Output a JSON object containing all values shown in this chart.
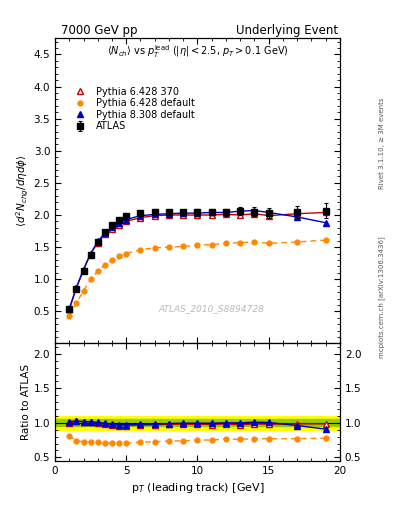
{
  "title_left": "7000 GeV pp",
  "title_right": "Underlying Event",
  "watermark": "ATLAS_2010_S8894728",
  "ylabel_main": "$\\langle d^2 N_{chg}/d\\eta d\\phi\\rangle$",
  "ylabel_ratio": "Ratio to ATLAS",
  "xlabel": "p$_T$ (leading track) [GeV]",
  "ylim_main": [
    0.0,
    4.75
  ],
  "ylim_ratio": [
    0.45,
    2.15
  ],
  "yticks_main": [
    0.5,
    1.0,
    1.5,
    2.0,
    2.5,
    3.0,
    3.5,
    4.0,
    4.5
  ],
  "yticks_ratio": [
    0.5,
    1.0,
    1.5,
    2.0
  ],
  "xticks": [
    0,
    5,
    10,
    15,
    20
  ],
  "atlas_x": [
    1.0,
    1.5,
    2.0,
    2.5,
    3.0,
    3.5,
    4.0,
    4.5,
    5.0,
    6.0,
    7.0,
    8.0,
    9.0,
    10.0,
    11.0,
    12.0,
    13.0,
    14.0,
    15.0,
    17.0,
    19.0
  ],
  "atlas_y": [
    0.53,
    0.85,
    1.13,
    1.38,
    1.58,
    1.73,
    1.85,
    1.93,
    1.98,
    2.03,
    2.05,
    2.04,
    2.04,
    2.04,
    2.05,
    2.04,
    2.06,
    2.05,
    2.03,
    2.05,
    2.07
  ],
  "atlas_yerr": [
    0.02,
    0.03,
    0.03,
    0.03,
    0.03,
    0.03,
    0.03,
    0.03,
    0.04,
    0.04,
    0.04,
    0.04,
    0.04,
    0.05,
    0.05,
    0.05,
    0.06,
    0.07,
    0.08,
    0.09,
    0.12
  ],
  "p6370_x": [
    1.0,
    1.5,
    2.0,
    2.5,
    3.0,
    3.5,
    4.0,
    4.5,
    5.0,
    6.0,
    7.0,
    8.0,
    9.0,
    10.0,
    11.0,
    12.0,
    13.0,
    14.0,
    15.0,
    17.0,
    19.0
  ],
  "p6370_y": [
    0.53,
    0.87,
    1.15,
    1.4,
    1.57,
    1.7,
    1.79,
    1.85,
    1.9,
    1.96,
    1.99,
    2.0,
    2.0,
    2.0,
    2.0,
    2.01,
    2.0,
    2.02,
    1.99,
    2.02,
    2.04
  ],
  "p6370_color": "#cc0000",
  "p6370_label": "Pythia 6.428 370",
  "p6def_x": [
    1.0,
    1.5,
    2.0,
    2.5,
    3.0,
    3.5,
    4.0,
    4.5,
    5.0,
    6.0,
    7.0,
    8.0,
    9.0,
    10.0,
    11.0,
    12.0,
    13.0,
    14.0,
    15.0,
    17.0,
    19.0
  ],
  "p6def_y": [
    0.43,
    0.63,
    0.82,
    1.0,
    1.13,
    1.22,
    1.3,
    1.36,
    1.4,
    1.46,
    1.49,
    1.5,
    1.51,
    1.53,
    1.54,
    1.56,
    1.57,
    1.58,
    1.56,
    1.58,
    1.61
  ],
  "p6def_color": "#ff8800",
  "p6def_label": "Pythia 6.428 default",
  "p8def_x": [
    1.0,
    1.5,
    2.0,
    2.5,
    3.0,
    3.5,
    4.0,
    4.5,
    5.0,
    6.0,
    7.0,
    8.0,
    9.0,
    10.0,
    11.0,
    12.0,
    13.0,
    14.0,
    15.0,
    17.0,
    19.0
  ],
  "p8def_y": [
    0.54,
    0.87,
    1.15,
    1.4,
    1.59,
    1.72,
    1.81,
    1.88,
    1.93,
    1.99,
    2.01,
    2.02,
    2.03,
    2.03,
    2.04,
    2.04,
    2.06,
    2.07,
    2.04,
    1.97,
    1.88
  ],
  "p8def_color": "#0000cc",
  "p8def_label": "Pythia 8.308 default",
  "band_yellow": 0.1,
  "band_green": 0.05
}
